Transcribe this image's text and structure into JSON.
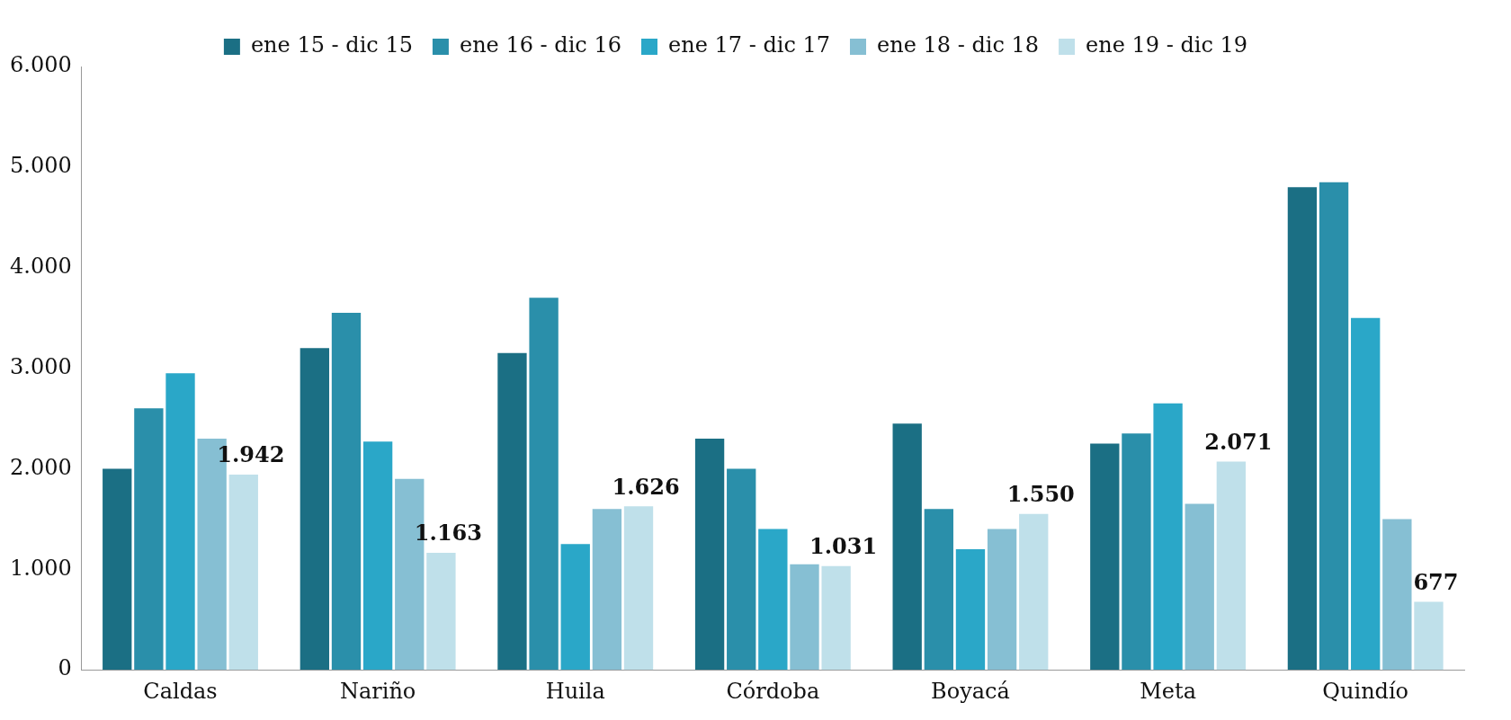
{
  "chart_data": {
    "type": "bar",
    "categories": [
      "Caldas",
      "Nariño",
      "Huila",
      "Córdoba",
      "Boyacá",
      "Meta",
      "Quindío"
    ],
    "series": [
      {
        "name": "ene 15 - dic 15",
        "color": "#1b6f84",
        "values": [
          2000,
          3200,
          3150,
          2300,
          2450,
          2250,
          4800
        ]
      },
      {
        "name": "ene 16 - dic 16",
        "color": "#2a8faa",
        "values": [
          2600,
          3550,
          3700,
          2000,
          1600,
          2350,
          4850
        ]
      },
      {
        "name": "ene 17 - dic 17",
        "color": "#2aa7c8",
        "values": [
          2950,
          2270,
          1250,
          1400,
          1200,
          2650,
          3500
        ]
      },
      {
        "name": "ene 18 - dic 18",
        "color": "#86bfd3",
        "values": [
          2300,
          1900,
          1600,
          1050,
          1400,
          1650,
          1500
        ]
      },
      {
        "name": "ene 19 - dic 19",
        "color": "#bfe0ea",
        "values": [
          1942,
          1163,
          1626,
          1031,
          1550,
          2071,
          677
        ],
        "value_labels": [
          "1.942",
          "1.163",
          "1.626",
          "1.031",
          "1.550",
          "2.071",
          "677"
        ]
      }
    ],
    "ylim": [
      0,
      6000
    ],
    "yticks": [
      0,
      {
        "value": 1000,
        "label": "1.000"
      },
      {
        "value": 2000,
        "label": "2.000"
      },
      {
        "value": 3000,
        "label": "3.000"
      },
      {
        "value": 4000,
        "label": "4.000"
      },
      {
        "value": 5000,
        "label": "5.000"
      },
      {
        "value": 6000,
        "label": "6.000"
      }
    ],
    "grid": false,
    "legend": "top"
  }
}
